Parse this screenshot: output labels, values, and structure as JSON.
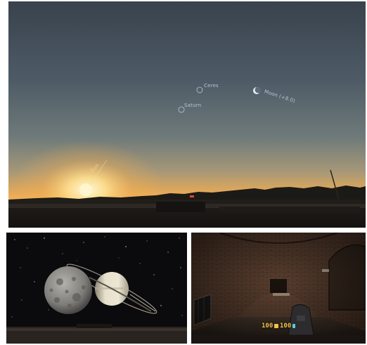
{
  "sky_view": {
    "labels": {
      "ceres": "Ceres",
      "saturn": "Saturn",
      "moon": "Moon (+8.0)",
      "sun": "Sun"
    },
    "colors": {
      "sky_top": "#3a4450",
      "sky_mid": "#5f6b72",
      "horizon_glow": "#f0a850",
      "sun": "#fff4c8",
      "ground": "#1a1714"
    }
  },
  "saturn_view": {
    "colors": {
      "space": "#0b0b0d",
      "moon": "#8a8a88",
      "saturn": "#d8d2c0",
      "ground": "#2a2420"
    }
  },
  "tunnel_view": {
    "hud": {
      "health": "100",
      "ammo": "100"
    },
    "colors": {
      "brick": "#6a4a34",
      "hud_text": "#f2c14a"
    }
  }
}
